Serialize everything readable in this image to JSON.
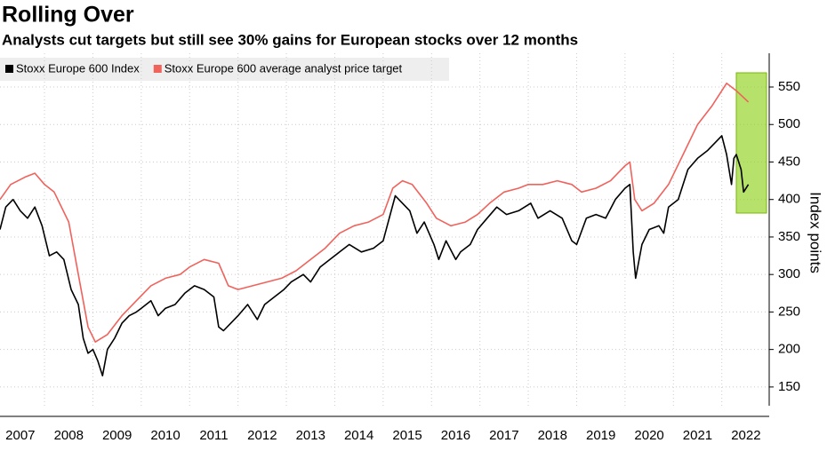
{
  "chart_data": {
    "type": "line",
    "title": "Rolling Over",
    "subtitle": "Analysts cut targets but still see 30% gains for European stocks over 12 months",
    "y_label": "Index points",
    "xlim": [
      2007.08,
      2022.98
    ],
    "xticks": [
      {
        "value": 2007.5,
        "label": "2007"
      },
      {
        "value": 2008.5,
        "label": "2008"
      },
      {
        "value": 2009.5,
        "label": "2009"
      },
      {
        "value": 2010.5,
        "label": "2010"
      },
      {
        "value": 2011.5,
        "label": "2011"
      },
      {
        "value": 2012.5,
        "label": "2012"
      },
      {
        "value": 2013.5,
        "label": "2013"
      },
      {
        "value": 2014.5,
        "label": "2014"
      },
      {
        "value": 2015.5,
        "label": "2015"
      },
      {
        "value": 2016.5,
        "label": "2016"
      },
      {
        "value": 2017.5,
        "label": "2017"
      },
      {
        "value": 2018.5,
        "label": "2018"
      },
      {
        "value": 2019.5,
        "label": "2019"
      },
      {
        "value": 2020.5,
        "label": "2020"
      },
      {
        "value": 2021.5,
        "label": "2021"
      },
      {
        "value": 2022.5,
        "label": "2022"
      }
    ],
    "ylim": [
      125,
      595
    ],
    "yticks": [
      150,
      200,
      250,
      300,
      350,
      400,
      450,
      500,
      550
    ],
    "grid": true,
    "legend": "top-left",
    "series": [
      {
        "name": "Stoxx Europe 600 Index",
        "color": "#000000",
        "x": [
          2007.08,
          2007.2,
          2007.35,
          2007.5,
          2007.65,
          2007.8,
          2007.95,
          2008.1,
          2008.25,
          2008.4,
          2008.55,
          2008.7,
          2008.8,
          2008.9,
          2009.0,
          2009.1,
          2009.2,
          2009.3,
          2009.45,
          2009.6,
          2009.75,
          2009.9,
          2010.0,
          2010.2,
          2010.35,
          2010.5,
          2010.7,
          2010.9,
          2011.1,
          2011.3,
          2011.5,
          2011.6,
          2011.7,
          2011.85,
          2012.0,
          2012.2,
          2012.4,
          2012.55,
          2012.75,
          2012.95,
          2013.1,
          2013.35,
          2013.5,
          2013.7,
          2013.9,
          2014.1,
          2014.3,
          2014.55,
          2014.8,
          2015.0,
          2015.25,
          2015.4,
          2015.55,
          2015.7,
          2015.85,
          2016.05,
          2016.15,
          2016.3,
          2016.5,
          2016.6,
          2016.8,
          2016.95,
          2017.15,
          2017.35,
          2017.55,
          2017.8,
          2018.05,
          2018.2,
          2018.45,
          2018.7,
          2018.9,
          2019.0,
          2019.2,
          2019.4,
          2019.6,
          2019.8,
          2020.0,
          2020.1,
          2020.17,
          2020.22,
          2020.35,
          2020.5,
          2020.7,
          2020.8,
          2020.9,
          2021.1,
          2021.3,
          2021.5,
          2021.7,
          2021.85,
          2022.0,
          2022.1,
          2022.2,
          2022.25,
          2022.3,
          2022.4,
          2022.45,
          2022.55
        ],
        "values": [
          360,
          390,
          400,
          385,
          375,
          390,
          365,
          325,
          330,
          320,
          280,
          260,
          215,
          195,
          200,
          185,
          165,
          200,
          215,
          235,
          245,
          250,
          255,
          265,
          245,
          255,
          260,
          275,
          285,
          280,
          270,
          230,
          225,
          235,
          245,
          260,
          240,
          260,
          270,
          280,
          290,
          300,
          290,
          310,
          320,
          330,
          340,
          330,
          335,
          345,
          405,
          395,
          385,
          355,
          370,
          340,
          320,
          345,
          320,
          330,
          340,
          360,
          375,
          390,
          380,
          385,
          395,
          375,
          385,
          375,
          345,
          340,
          375,
          380,
          375,
          400,
          415,
          420,
          330,
          295,
          340,
          360,
          365,
          355,
          390,
          400,
          440,
          455,
          465,
          475,
          485,
          460,
          420,
          455,
          460,
          440,
          410,
          420
        ]
      },
      {
        "name": "Stoxx Europe 600 average analyst price target",
        "color": "#f0625c",
        "x": [
          2007.08,
          2007.3,
          2007.6,
          2007.8,
          2008.0,
          2008.2,
          2008.5,
          2008.7,
          2008.9,
          2009.05,
          2009.3,
          2009.6,
          2009.9,
          2010.2,
          2010.5,
          2010.8,
          2011.0,
          2011.3,
          2011.6,
          2011.8,
          2012.0,
          2012.3,
          2012.6,
          2012.9,
          2013.2,
          2013.5,
          2013.8,
          2014.1,
          2014.4,
          2014.7,
          2015.0,
          2015.2,
          2015.4,
          2015.6,
          2015.9,
          2016.1,
          2016.4,
          2016.7,
          2016.95,
          2017.2,
          2017.5,
          2017.8,
          2018.0,
          2018.3,
          2018.6,
          2018.9,
          2019.1,
          2019.4,
          2019.7,
          2020.0,
          2020.1,
          2020.2,
          2020.35,
          2020.6,
          2020.9,
          2021.2,
          2021.5,
          2021.8,
          2022.0,
          2022.1,
          2022.3,
          2022.55
        ],
        "values": [
          400,
          420,
          430,
          435,
          420,
          410,
          370,
          300,
          230,
          210,
          220,
          245,
          265,
          285,
          295,
          300,
          310,
          320,
          315,
          285,
          280,
          285,
          290,
          295,
          305,
          320,
          335,
          355,
          365,
          370,
          380,
          415,
          425,
          420,
          395,
          375,
          365,
          370,
          380,
          395,
          410,
          415,
          420,
          420,
          425,
          420,
          410,
          415,
          425,
          445,
          450,
          400,
          385,
          395,
          420,
          460,
          500,
          525,
          545,
          555,
          545,
          530
        ]
      }
    ]
  }
}
